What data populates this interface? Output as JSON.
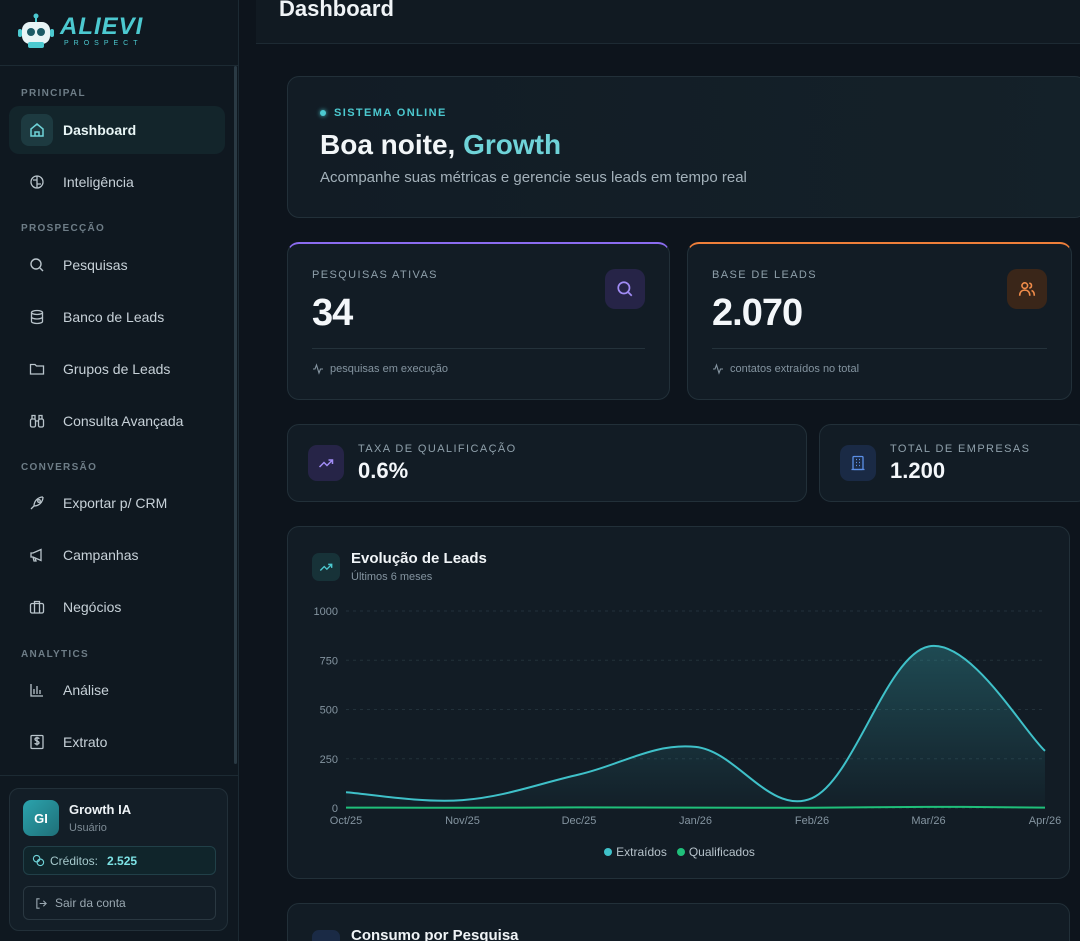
{
  "brand": {
    "name": "ALIEVI",
    "sub": "PROSPECT"
  },
  "header": {
    "title": "Dashboard"
  },
  "sidebar": {
    "sections": [
      {
        "title": "PRINCIPAL"
      },
      {
        "title": "PROSPECÇÃO"
      },
      {
        "title": "CONVERSÃO"
      },
      {
        "title": "ANALYTICS"
      }
    ],
    "items": [
      {
        "label": "Dashboard",
        "icon": "home-icon",
        "active": true
      },
      {
        "label": "Inteligência",
        "icon": "brain-icon"
      },
      {
        "label": "Pesquisas",
        "icon": "search-icon"
      },
      {
        "label": "Banco de Leads",
        "icon": "database-icon"
      },
      {
        "label": "Grupos de Leads",
        "icon": "folder-icon"
      },
      {
        "label": "Consulta Avançada",
        "icon": "binoculars-icon"
      },
      {
        "label": "Exportar p/ CRM",
        "icon": "rocket-icon"
      },
      {
        "label": "Campanhas",
        "icon": "megaphone-icon"
      },
      {
        "label": "Negócios",
        "icon": "briefcase-icon"
      },
      {
        "label": "Análise",
        "icon": "bar-chart-icon"
      },
      {
        "label": "Extrato",
        "icon": "dollar-receipt-icon"
      }
    ]
  },
  "user": {
    "initials": "GI",
    "name": "Growth IA",
    "role": "Usuário",
    "credits_label": "Créditos:",
    "credits_value": "2.525",
    "logout_label": "Sair da conta"
  },
  "hero": {
    "status": "SISTEMA ONLINE",
    "greeting": "Boa noite,",
    "name": "Growth",
    "subtitle": "Acompanhe suas métricas e gerencie seus leads em tempo real"
  },
  "stats": [
    {
      "label": "PESQUISAS ATIVAS",
      "value": "34",
      "foot": "pesquisas em execução",
      "accent": "#8b6cf0"
    },
    {
      "label": "BASE DE LEADS",
      "value": "2.070",
      "foot": "contatos extraídos no total",
      "accent": "#ef7f3a"
    }
  ],
  "mini_stats": [
    {
      "label": "TAXA DE QUALIFICAÇÃO",
      "value": "0.6%"
    },
    {
      "label": "TOTAL DE EMPRESAS",
      "value": "1.200"
    }
  ],
  "chart": {
    "title": "Evolução de Leads",
    "subtitle": "Últimos 6 meses"
  },
  "chart_data": {
    "type": "area",
    "title": "Evolução de Leads",
    "subtitle": "Últimos 6 meses",
    "categories": [
      "Oct/25",
      "Nov/25",
      "Dec/25",
      "Jan/26",
      "Feb/26",
      "Mar/26",
      "Apr/26"
    ],
    "y_ticks": [
      0,
      250,
      500,
      750,
      1000
    ],
    "ylim": [
      0,
      1000
    ],
    "grid": true,
    "legend_position": "bottom",
    "series": [
      {
        "name": "Extraídos",
        "color": "#3fc1c9",
        "values": [
          80,
          40,
          170,
          310,
          50,
          820,
          290
        ]
      },
      {
        "name": "Qualificados",
        "color": "#1fbf7a",
        "values": [
          2,
          1,
          3,
          2,
          1,
          6,
          2
        ]
      }
    ]
  },
  "next_card": {
    "title": "Consumo por Pesquisa"
  }
}
